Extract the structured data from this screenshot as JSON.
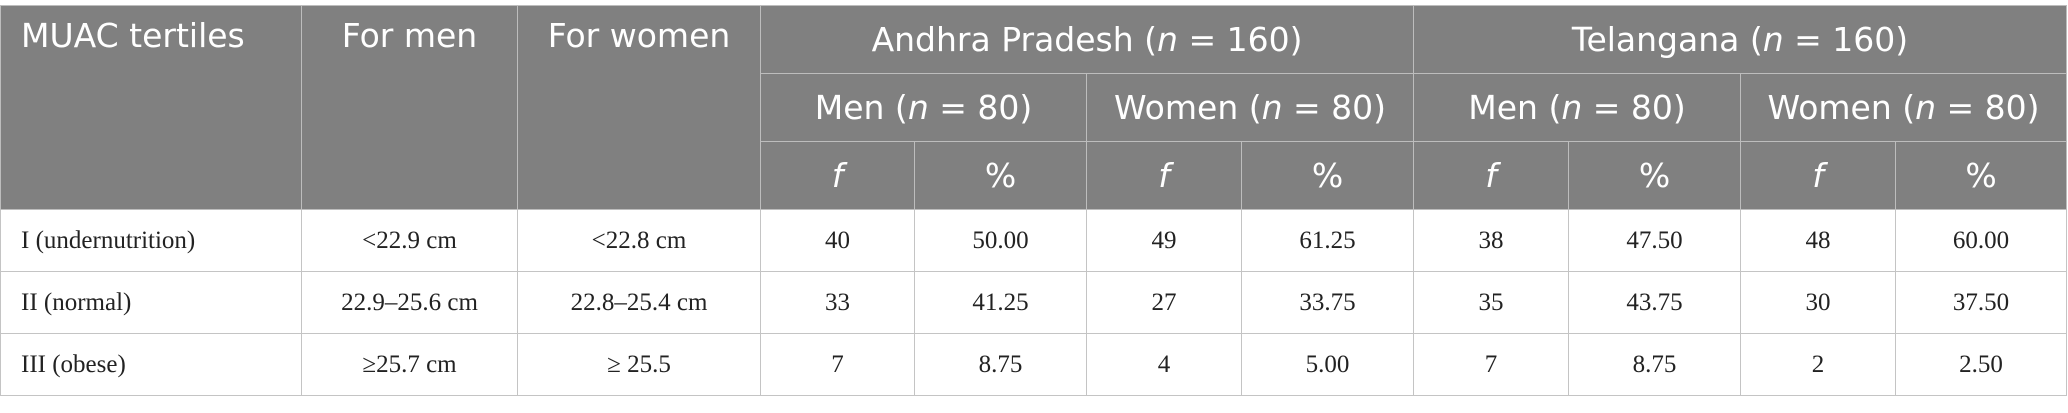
{
  "header": {
    "col1": "MUAC tertiles",
    "col2": "For men",
    "col3": "For women",
    "groups": [
      {
        "pre": "Andhra Pradesh (",
        "var": "n",
        "post": " = 160)"
      },
      {
        "pre": "Telangana (",
        "var": "n",
        "post": " = 160)"
      }
    ],
    "subgroups": [
      {
        "pre": "Men (",
        "var": "n",
        "post": " = 80)"
      },
      {
        "pre": "Women (",
        "var": "n",
        "post": " = 80)"
      },
      {
        "pre": "Men (",
        "var": "n",
        "post": " = 80)"
      },
      {
        "pre": "Women (",
        "var": "n",
        "post": " = 80)"
      }
    ],
    "stats": [
      "f",
      "%",
      "f",
      "%",
      "f",
      "%",
      "f",
      "%"
    ]
  },
  "table": {
    "rows": [
      [
        "I (undernutrition)",
        "<22.9 cm",
        "<22.8 cm",
        "40",
        "50.00",
        "49",
        "61.25",
        "38",
        "47.50",
        "48",
        "60.00"
      ],
      [
        "II (normal)",
        "22.9–25.6 cm",
        "22.8–25.4 cm",
        "33",
        "41.25",
        "27",
        "33.75",
        "35",
        "43.75",
        "30",
        "37.50"
      ],
      [
        "III (obese)",
        "≥25.7 cm",
        "≥ 25.5",
        "7",
        "8.75",
        "4",
        "5.00",
        "7",
        "8.75",
        "2",
        "2.50"
      ]
    ]
  }
}
